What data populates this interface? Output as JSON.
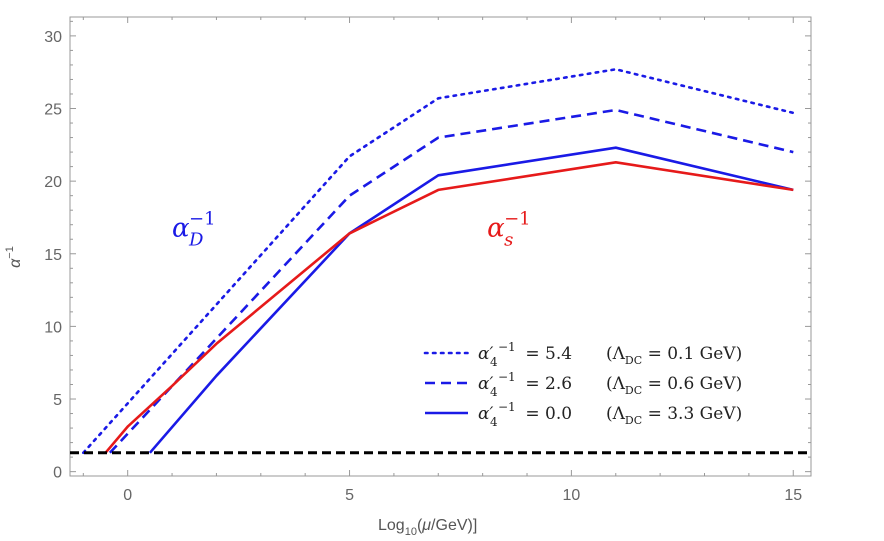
{
  "chart_data": {
    "type": "line",
    "title": "",
    "xlabel": "Log10(μ/GeV)]",
    "ylabel": "α^-1",
    "xlim": [
      -1.3,
      15.4
    ],
    "ylim": [
      -0.3,
      31.3
    ],
    "x_ticks": [
      0,
      5,
      10,
      15
    ],
    "y_ticks": [
      0,
      5,
      10,
      15,
      20,
      25,
      30
    ],
    "grid": false,
    "legend_position": "bottom-right",
    "colors": {
      "blue": "#1a1ae6",
      "red": "#e61a1a",
      "black": "#000000",
      "frame": "#999999"
    },
    "series": [
      {
        "name": "α'4^-1 = 5.4 (ΛDC = 0.1 GeV)",
        "group": "alpha_D",
        "style": "dotted",
        "color": "#1a1ae6",
        "x": [
          -1.0,
          5.0,
          7.0,
          11.0,
          15.0
        ],
        "y": [
          1.3,
          21.7,
          25.7,
          27.7,
          24.7
        ]
      },
      {
        "name": "α'4^-1 = 2.6 (ΛDC = 0.6 GeV)",
        "group": "alpha_D",
        "style": "dashed",
        "color": "#1a1ae6",
        "x": [
          -0.4,
          5.0,
          7.0,
          11.0,
          15.0
        ],
        "y": [
          1.3,
          19.0,
          23.0,
          24.9,
          22.0
        ]
      },
      {
        "name": "α'4^-1 = 0.0 (ΛDC = 3.3 GeV)",
        "group": "alpha_D",
        "style": "solid",
        "color": "#1a1ae6",
        "x": [
          0.5,
          2.0,
          5.0,
          7.0,
          11.0,
          15.0
        ],
        "y": [
          1.3,
          6.6,
          16.4,
          20.4,
          22.3,
          19.4
        ]
      },
      {
        "name": "α_s^-1",
        "group": "alpha_s",
        "style": "solid",
        "color": "#e61a1a",
        "x": [
          -0.5,
          0.0,
          1.0,
          2.0,
          5.0,
          7.0,
          11.0,
          15.0
        ],
        "y": [
          1.3,
          3.1,
          5.9,
          8.8,
          16.4,
          19.4,
          21.3,
          19.4
        ]
      },
      {
        "name": "threshold",
        "group": "reference",
        "style": "dashed-thick",
        "color": "#000000",
        "x": [
          -1.3,
          15.4
        ],
        "y": [
          1.3,
          1.3
        ]
      }
    ],
    "annotations": [
      {
        "base": "α",
        "sub": "D",
        "sup": "−1",
        "color": "#1a1ae6",
        "at": [
          1.0,
          16.2
        ]
      },
      {
        "base": "α",
        "sub": "s",
        "sup": "−1",
        "color": "#e61a1a",
        "at": [
          8.1,
          16.2
        ]
      }
    ],
    "legend": [
      {
        "style": "dotted",
        "prefix": "α′",
        "sub": "4",
        "sup": "−1",
        "value_text": " = 5.4",
        "paren_text": "(Λ",
        "paren_sub": "DC",
        "paren_rest": " = 0.1 GeV)"
      },
      {
        "style": "dashed",
        "prefix": "α′",
        "sub": "4",
        "sup": "−1",
        "value_text": " = 2.6",
        "paren_text": "(Λ",
        "paren_sub": "DC",
        "paren_rest": " = 0.6 GeV)"
      },
      {
        "style": "solid",
        "prefix": "α′",
        "sub": "4",
        "sup": "−1",
        "value_text": " = 0.0",
        "paren_text": "(Λ",
        "paren_sub": "DC",
        "paren_rest": " = 3.3 GeV)"
      }
    ],
    "axis_labels": {
      "x_pre": "Log",
      "x_sub": "10",
      "x_mid": "(",
      "x_mu": "μ",
      "x_post": "/GeV)]",
      "y_base": "α",
      "y_sup": "−1"
    }
  }
}
